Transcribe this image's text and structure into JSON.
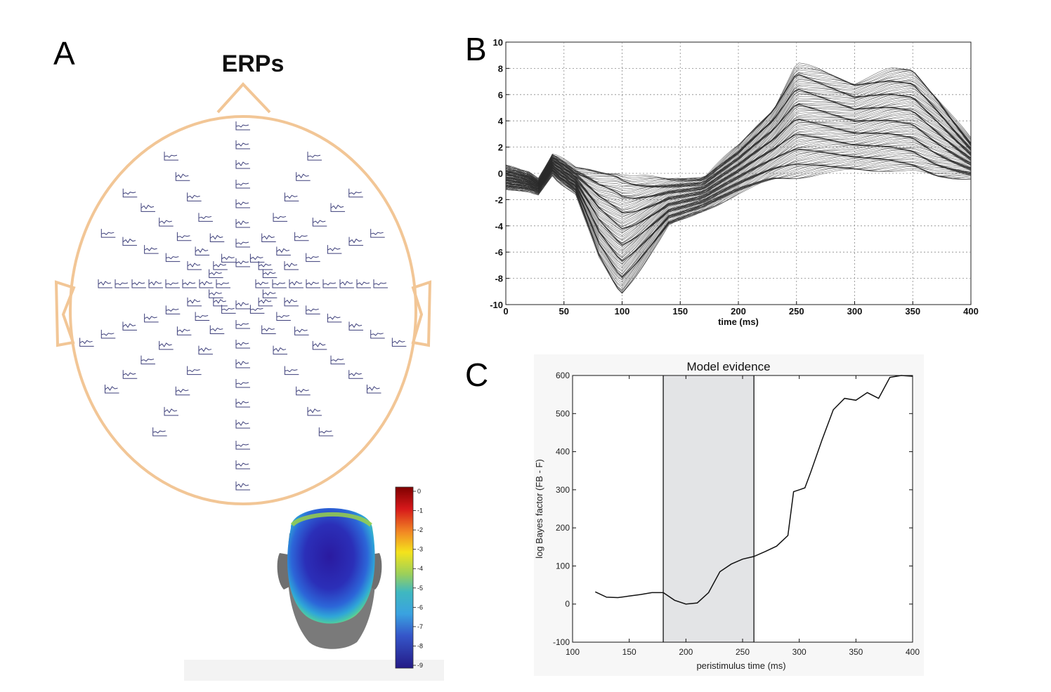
{
  "panels": {
    "a": {
      "letter": "A",
      "title": "ERPs"
    },
    "b": {
      "letter": "B"
    },
    "c": {
      "letter": "C"
    }
  },
  "colors": {
    "head_outline": "#f2c696",
    "erp_traces": "#3d3f7a",
    "butterfly_traces": "#2b2b2b",
    "model_line": "#111111",
    "window_fill": "#e3e4e6"
  },
  "colorbar": {
    "ticks": [
      "0",
      "-1",
      "-2",
      "-3",
      "-4",
      "-5",
      "-6",
      "-7",
      "-8",
      "-9"
    ],
    "range": [
      -9,
      0
    ],
    "colormap": "jet"
  },
  "chart_data": [
    {
      "type": "line",
      "panel": "B",
      "title": "",
      "xlabel": "time (ms)",
      "ylabel": "",
      "xlim": [
        0,
        400
      ],
      "ylim": [
        -10,
        10
      ],
      "xticks": [
        "0",
        "50",
        "100",
        "150",
        "200",
        "250",
        "300",
        "350",
        "400"
      ],
      "yticks": [
        "10",
        "8",
        "6",
        "4",
        "2",
        "0",
        "-2",
        "-4",
        "-6",
        "-8",
        "-10"
      ],
      "grid": true,
      "n_series": 128,
      "envelope": {
        "x": [
          0,
          20,
          28,
          40,
          45,
          60,
          80,
          95,
          100,
          110,
          140,
          170,
          200,
          230,
          250,
          270,
          300,
          330,
          350,
          370,
          400
        ],
        "upper": [
          0.5,
          0.0,
          -0.5,
          1.4,
          1.2,
          0.3,
          0.2,
          0.2,
          0.0,
          -0.3,
          -0.5,
          -0.3,
          2.0,
          5.0,
          8.3,
          7.8,
          7.0,
          7.8,
          7.9,
          6.0,
          2.5
        ],
        "lower": [
          -1.2,
          -1.3,
          -1.5,
          0.0,
          -0.5,
          -1.5,
          -6.5,
          -8.8,
          -9.2,
          -8.0,
          -4.0,
          -2.8,
          -1.5,
          -0.5,
          -0.3,
          0.0,
          0.2,
          0.3,
          0.2,
          -0.3,
          -0.3
        ]
      }
    },
    {
      "type": "line",
      "panel": "C",
      "title": "Model evidence",
      "xlabel": "peristimulus time (ms)",
      "ylabel": "log Bayes factor (FB - F)",
      "xlim": [
        100,
        400
      ],
      "ylim": [
        -100,
        600
      ],
      "xticks": [
        "100",
        "150",
        "200",
        "250",
        "300",
        "350",
        "400"
      ],
      "yticks": [
        "600",
        "500",
        "400",
        "300",
        "200",
        "100",
        "0",
        "-100"
      ],
      "shaded_window": [
        180,
        260
      ],
      "grid": false,
      "series": [
        {
          "x": [
            120,
            130,
            140,
            150,
            160,
            170,
            180,
            190,
            200,
            210,
            220,
            230,
            240,
            250,
            260,
            270,
            280,
            290,
            295,
            300,
            305,
            310,
            320,
            330,
            340,
            350,
            360,
            370,
            380,
            390,
            400
          ],
          "values": [
            32,
            18,
            17,
            21,
            25,
            30,
            30,
            10,
            0,
            3,
            30,
            85,
            105,
            118,
            125,
            138,
            152,
            180,
            295,
            300,
            305,
            345,
            430,
            510,
            540,
            535,
            555,
            540,
            595,
            600,
            598
          ]
        }
      ]
    }
  ]
}
